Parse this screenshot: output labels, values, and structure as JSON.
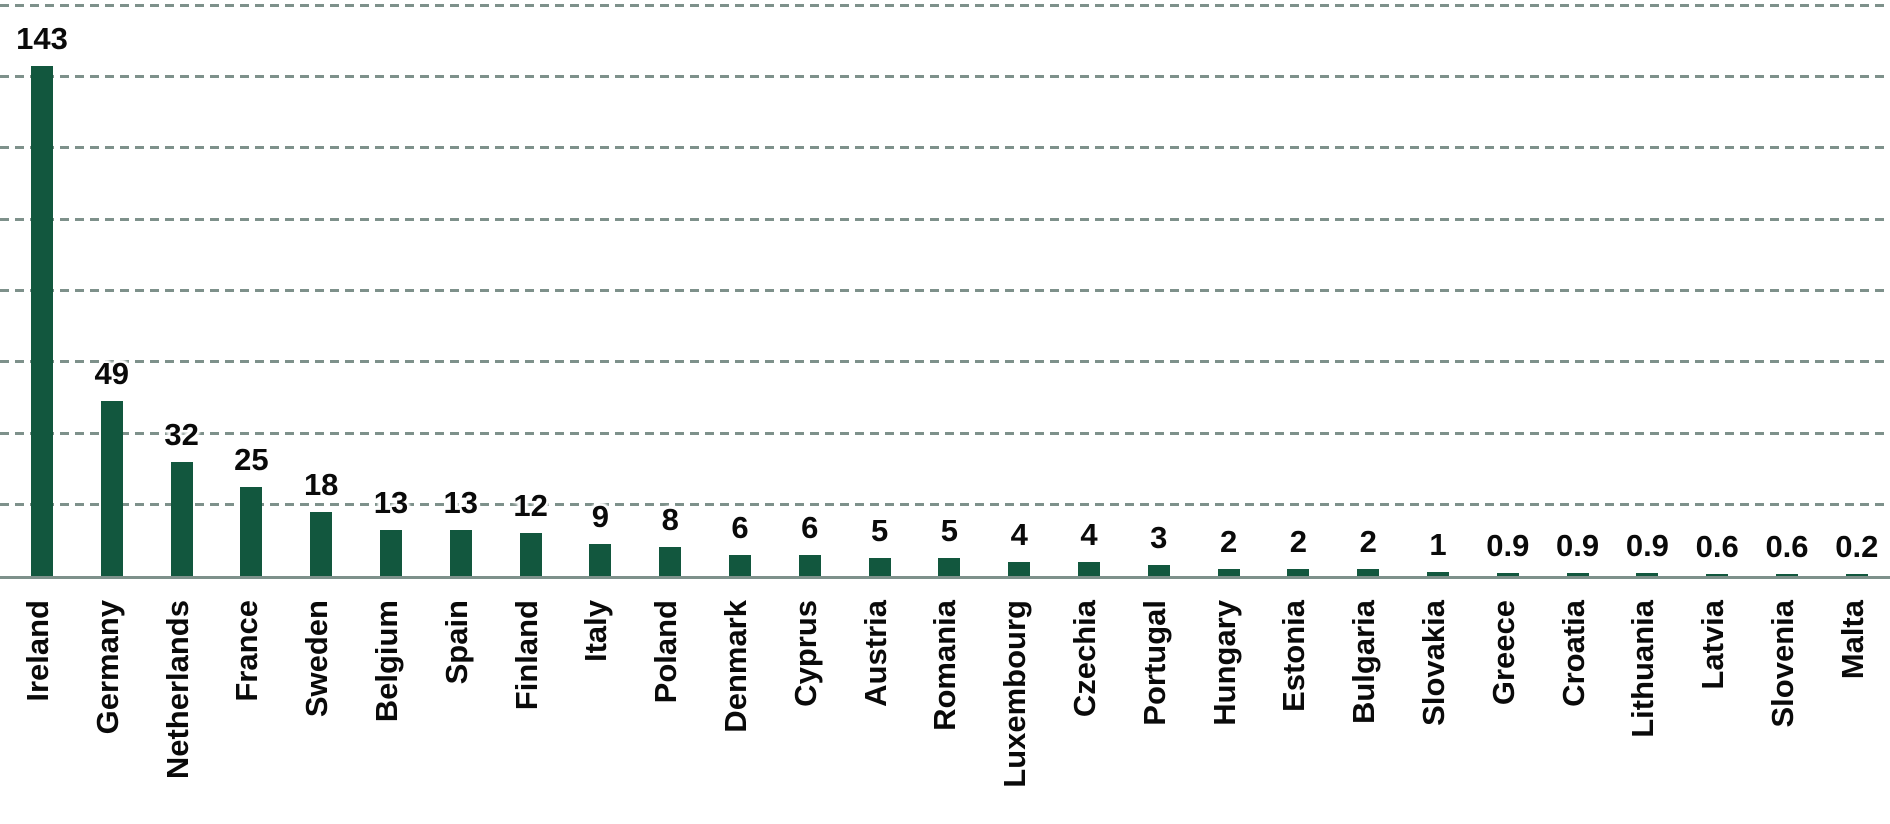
{
  "chart_data": {
    "type": "bar",
    "title": "",
    "categories": [
      "Ireland",
      "Germany",
      "Netherlands",
      "France",
      "Sweden",
      "Belgium",
      "Spain",
      "Finland",
      "Italy",
      "Poland",
      "Denmark",
      "Cyprus",
      "Austria",
      "Romania",
      "Luxembourg",
      "Czechia",
      "Portugal",
      "Hungary",
      "Estonia",
      "Bulgaria",
      "Slovakia",
      "Greece",
      "Croatia",
      "Lithuania",
      "Latvia",
      "Slovenia",
      "Malta"
    ],
    "values": [
      143,
      49,
      32,
      25,
      18,
      13,
      13,
      12,
      9,
      8,
      6,
      6,
      5,
      5,
      4,
      4,
      3,
      2,
      2,
      2,
      1,
      0.9,
      0.9,
      0.9,
      0.6,
      0.6,
      0.2
    ],
    "value_labels": [
      "143",
      "49",
      "32",
      "25",
      "18",
      "13",
      "13",
      "12",
      "9",
      "8",
      "6",
      "6",
      "5",
      "5",
      "4",
      "4",
      "3",
      "2",
      "2",
      "2",
      "1",
      "0.9",
      "0.9",
      "0.9",
      "0.6",
      "0.6",
      "0.2"
    ],
    "xlabel": "",
    "ylabel": "",
    "ylim": [
      0,
      160
    ],
    "grid_step": 20,
    "grid": "dashed-horizontal",
    "legend": "none",
    "y_axis_tick_labels": "none",
    "bar_label_position": "above-bar",
    "category_label_rotation_deg": 90,
    "colors": {
      "bar": "#12573E",
      "gridline": "#7E918B",
      "axis_line": "#7E918B",
      "label_text": "#0A0A0A",
      "background": "#FFFFFF"
    }
  }
}
